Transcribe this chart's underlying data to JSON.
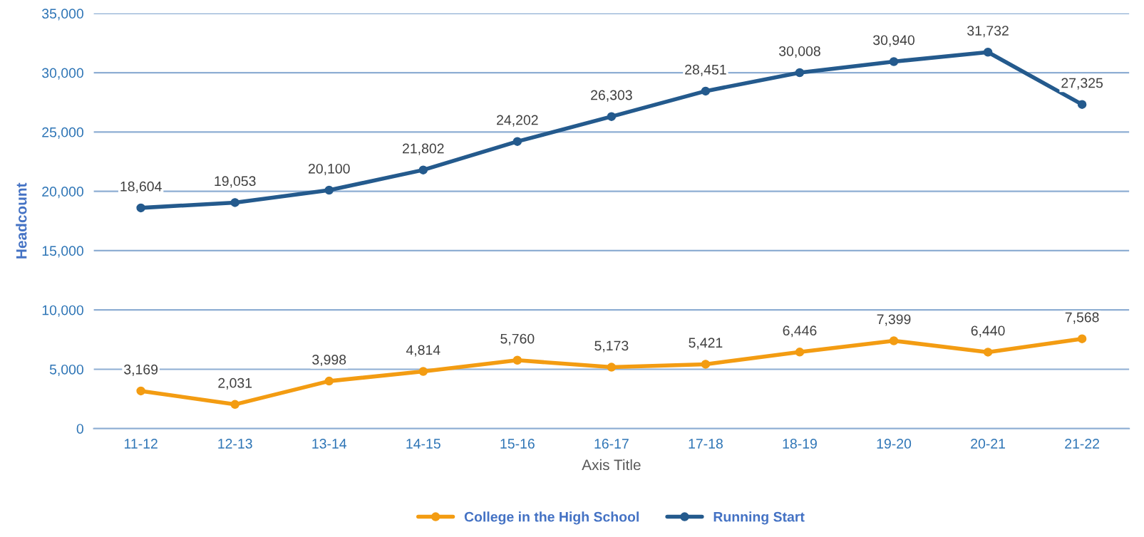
{
  "chart_data": {
    "type": "line",
    "categories": [
      "11-12",
      "12-13",
      "13-14",
      "14-15",
      "15-16",
      "16-17",
      "17-18",
      "18-19",
      "19-20",
      "20-21",
      "21-22"
    ],
    "series": [
      {
        "name": "College in the High School",
        "color": "#f39c12",
        "values": [
          3169,
          2031,
          3998,
          4814,
          5760,
          5173,
          5421,
          6446,
          7399,
          6440,
          7568
        ],
        "value_labels": [
          "3,169",
          "2,031",
          "3,998",
          "4,814",
          "5,760",
          "5,173",
          "5,421",
          "6,446",
          "7,399",
          "6,440",
          "7,568"
        ]
      },
      {
        "name": "Running Start",
        "color": "#245a8d",
        "values": [
          18604,
          19053,
          20100,
          21802,
          24202,
          26303,
          28451,
          30008,
          30940,
          31732,
          27325
        ],
        "value_labels": [
          "18,604",
          "19,053",
          "20,100",
          "21,802",
          "24,202",
          "26,303",
          "28,451",
          "30,008",
          "30,940",
          "31,732",
          "27,325"
        ]
      }
    ],
    "xlabel": "Axis Title",
    "ylabel": "Headcount",
    "ylim": [
      0,
      35000
    ],
    "yticks": [
      0,
      {
        "value": 5000,
        "label": "5,000"
      },
      {
        "value": 10000,
        "label": "10,000"
      },
      {
        "value": 15000,
        "label": "15,000"
      },
      {
        "value": 20000,
        "label": "20,000"
      },
      {
        "value": 25000,
        "label": "25,000"
      },
      {
        "value": 30000,
        "label": "30,000"
      },
      {
        "value": 35000,
        "label": "35,000"
      }
    ],
    "grid": "y",
    "legend": "bottom",
    "marker": "circle",
    "line_style": "solid"
  }
}
